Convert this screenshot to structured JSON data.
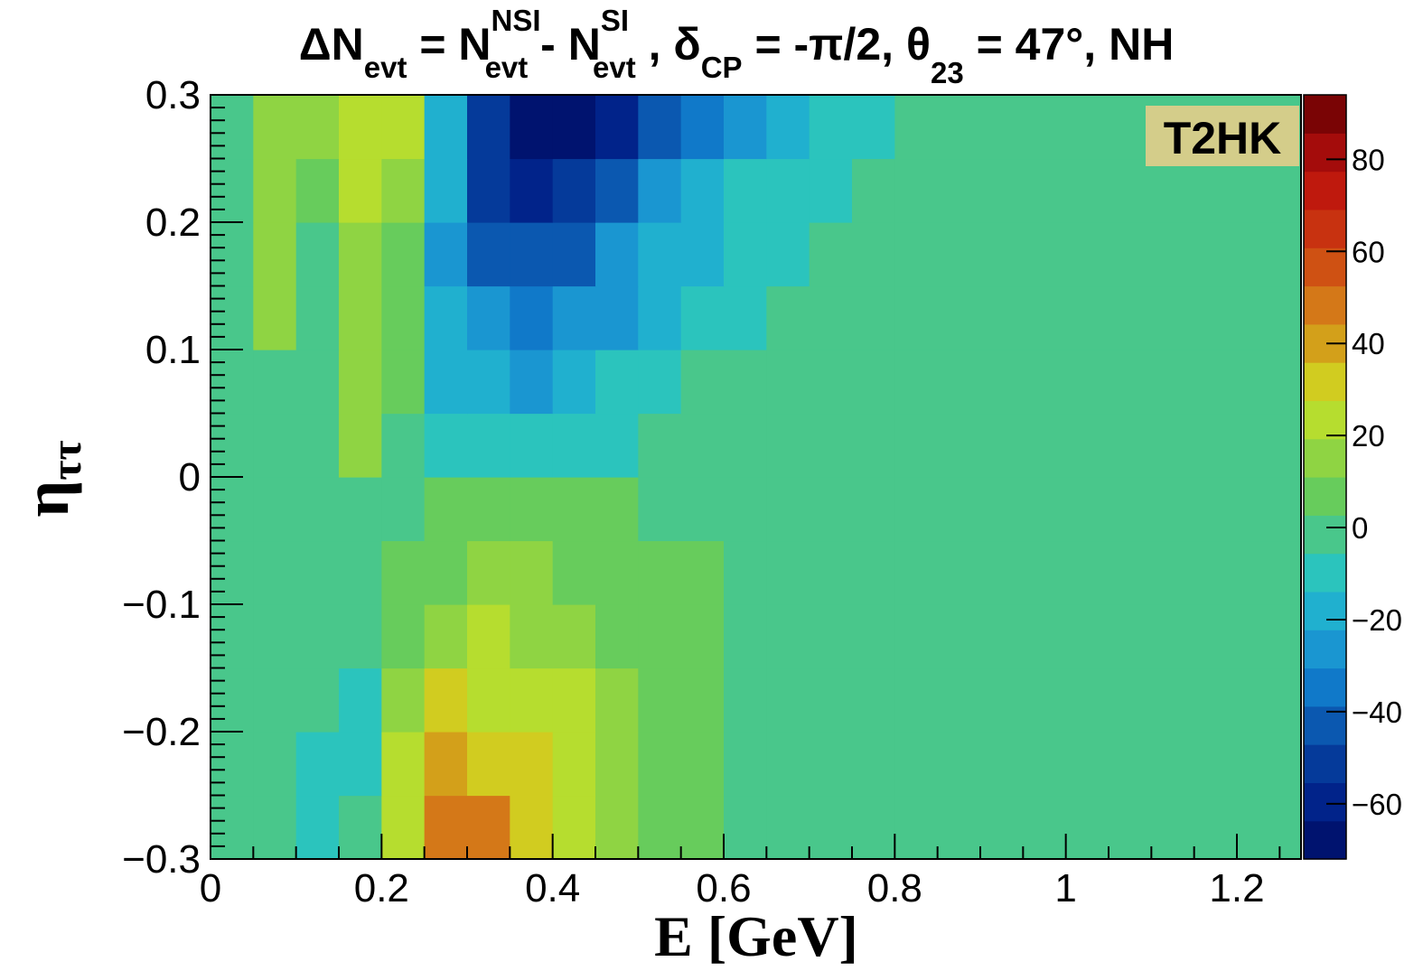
{
  "chart_data": {
    "type": "heatmap",
    "title": {
      "full": "ΔN_evt = N_evt^NSI - N_evt^SI , δ_CP = -π/2, θ_23 = 47°, NH",
      "p1": "ΔN",
      "p1_sub": "evt",
      "p2": " = N",
      "p2_sup": "NSI",
      "p2_sub": "evt",
      "p3": " - N",
      "p3_sup": "SI",
      "p3_sub": "evt",
      "p4": " , δ",
      "p4_sub": "CP",
      "p5": " = -π/2, θ",
      "p5_sub": "23",
      "p6": " = 47°, NH"
    },
    "xlabel": "E [GeV]",
    "ylabel": "η",
    "ylabel_sub": "ττ",
    "annotation": "T2HK",
    "xlim": [
      0,
      1.275
    ],
    "ylim": [
      -0.3,
      0.3
    ],
    "x_ticks": [
      {
        "value": 0,
        "label": "0"
      },
      {
        "value": 0.2,
        "label": "0.2"
      },
      {
        "value": 0.4,
        "label": "0.4"
      },
      {
        "value": 0.6,
        "label": "0.6"
      },
      {
        "value": 0.8,
        "label": "0.8"
      },
      {
        "value": 1.0,
        "label": "1"
      },
      {
        "value": 1.2,
        "label": "1.2"
      }
    ],
    "y_ticks": [
      {
        "value": 0.3,
        "label": "0.3"
      },
      {
        "value": 0.2,
        "label": "0.2"
      },
      {
        "value": 0.1,
        "label": "0.1"
      },
      {
        "value": 0,
        "label": "0"
      },
      {
        "value": -0.1,
        "label": "−0.1"
      },
      {
        "value": -0.2,
        "label": "−0.2"
      },
      {
        "value": -0.3,
        "label": "−0.3"
      }
    ],
    "colorbar": {
      "range": [
        -72,
        94
      ],
      "ticks": [
        {
          "value": 80,
          "label": "80"
        },
        {
          "value": 60,
          "label": "60"
        },
        {
          "value": 40,
          "label": "40"
        },
        {
          "value": 20,
          "label": "20"
        },
        {
          "value": 0,
          "label": "0"
        },
        {
          "value": -20,
          "label": "−20"
        },
        {
          "value": -40,
          "label": "−40"
        },
        {
          "value": -60,
          "label": "−60"
        }
      ],
      "colors": [
        "#00136f",
        "#01238a",
        "#053a9a",
        "#0b58b0",
        "#1079c9",
        "#1a96d1",
        "#20b0cf",
        "#2bc4bd",
        "#49c78b",
        "#67cc5c",
        "#8fd443",
        "#b6dd2f",
        "#d1cc20",
        "#d3a01a",
        "#d47818",
        "#cf5113",
        "#c83210",
        "#bf190d",
        "#a40c0b",
        "#7a0405"
      ]
    },
    "x_edges": [
      0,
      0.05,
      0.1,
      0.15,
      0.2,
      0.25,
      0.3,
      0.35,
      0.4,
      0.45,
      0.5,
      0.55,
      0.6,
      0.65,
      0.7,
      0.75,
      0.8,
      1.275
    ],
    "y_edges": [
      -0.3,
      -0.25,
      -0.2,
      -0.15,
      -0.1,
      -0.05,
      0,
      0.05,
      0.1,
      0.15,
      0.2,
      0.25,
      0.3
    ],
    "z_values": [
      [
        0,
        0,
        -10,
        0,
        25,
        45,
        45,
        30,
        25,
        15,
        8,
        8,
        0,
        0,
        0,
        0,
        0
      ],
      [
        0,
        0,
        -10,
        -10,
        25,
        40,
        35,
        30,
        25,
        15,
        8,
        8,
        0,
        0,
        0,
        0,
        0
      ],
      [
        0,
        0,
        0,
        -10,
        15,
        30,
        25,
        25,
        20,
        15,
        8,
        8,
        0,
        0,
        0,
        0,
        0
      ],
      [
        0,
        0,
        0,
        0,
        8,
        15,
        20,
        15,
        15,
        10,
        8,
        8,
        0,
        0,
        0,
        0,
        0
      ],
      [
        0,
        0,
        0,
        0,
        8,
        10,
        15,
        15,
        10,
        8,
        8,
        8,
        0,
        0,
        0,
        0,
        0
      ],
      [
        0,
        0,
        0,
        0,
        0,
        8,
        8,
        8,
        8,
        8,
        0,
        0,
        0,
        0,
        0,
        0,
        0
      ],
      [
        0,
        0,
        0,
        15,
        0,
        -10,
        -10,
        -10,
        -10,
        -10,
        0,
        0,
        0,
        0,
        0,
        0,
        0
      ],
      [
        0,
        0,
        0,
        15,
        5,
        -15,
        -20,
        -25,
        -15,
        -10,
        -10,
        0,
        0,
        0,
        0,
        0,
        0
      ],
      [
        0,
        15,
        0,
        15,
        5,
        -20,
        -30,
        -35,
        -30,
        -25,
        -20,
        -10,
        -10,
        0,
        0,
        0,
        0
      ],
      [
        0,
        15,
        0,
        15,
        5,
        -25,
        -40,
        -45,
        -40,
        -30,
        -20,
        -20,
        -10,
        -10,
        0,
        0,
        0
      ],
      [
        0,
        15,
        5,
        20,
        15,
        -20,
        -50,
        -60,
        -55,
        -45,
        -30,
        -20,
        -10,
        -10,
        -10,
        0,
        0
      ],
      [
        0,
        15,
        15,
        20,
        25,
        -20,
        -50,
        -70,
        -70,
        -60,
        -45,
        -35,
        -25,
        -15,
        -10,
        -10,
        0
      ]
    ]
  }
}
